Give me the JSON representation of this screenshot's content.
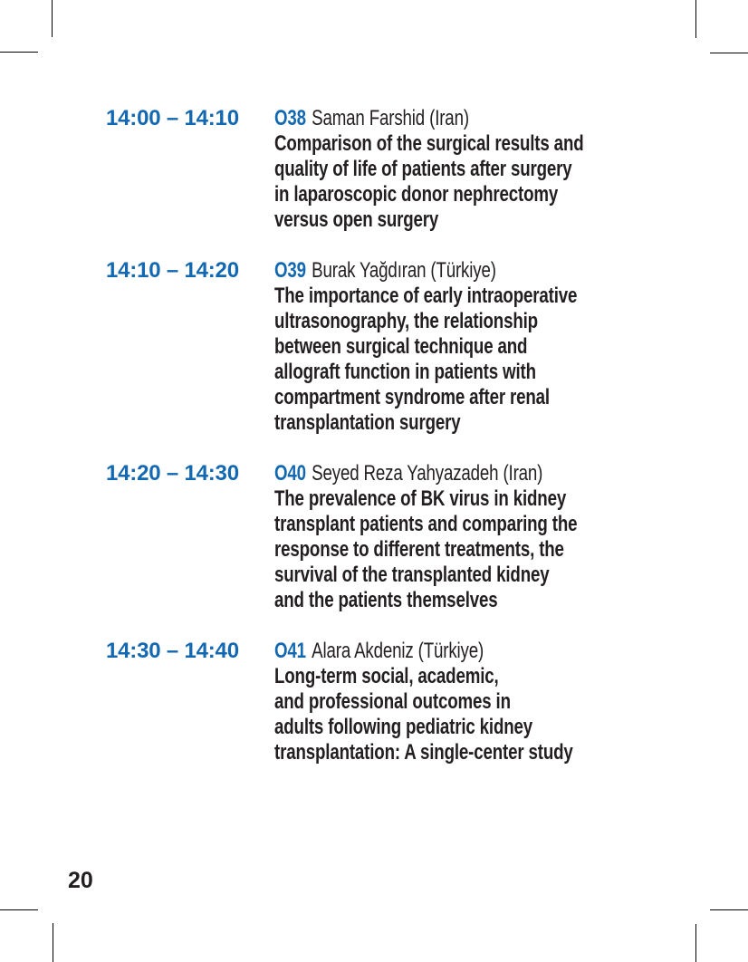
{
  "colors": {
    "accent": "#1368b2",
    "text": "#231f20"
  },
  "page_number": "20",
  "sessions": [
    {
      "time": "14:00 – 14:10",
      "code": "O38",
      "speaker": "Saman Farshid (Iran)",
      "title_lines": [
        "Comparison of the surgical results and",
        "quality of life of patients after surgery",
        "in laparoscopic donor nephrectomy",
        "versus open surgery"
      ]
    },
    {
      "time": "14:10 – 14:20",
      "code": "O39",
      "speaker": "Burak Yağdıran (Türkiye)",
      "title_lines": [
        "The importance of early intraoperative",
        "ultrasonography, the relationship",
        "between surgical technique and",
        "allograft function in patients with",
        "compartment syndrome after renal",
        "transplantation surgery"
      ]
    },
    {
      "time": "14:20 – 14:30",
      "code": "O40",
      "speaker": "Seyed Reza Yahyazadeh (Iran)",
      "title_lines": [
        "The prevalence of BK virus in kidney",
        "transplant patients and comparing the",
        "response to different treatments, the",
        "survival of the transplanted kidney",
        "and the patients themselves"
      ]
    },
    {
      "time": "14:30 – 14:40",
      "code": "O41",
      "speaker": "Alara Akdeniz (Türkiye)",
      "title_lines": [
        "Long-term social, academic,",
        "and professional outcomes in",
        "adults following pediatric kidney",
        "transplantation: A single-center study"
      ]
    }
  ]
}
